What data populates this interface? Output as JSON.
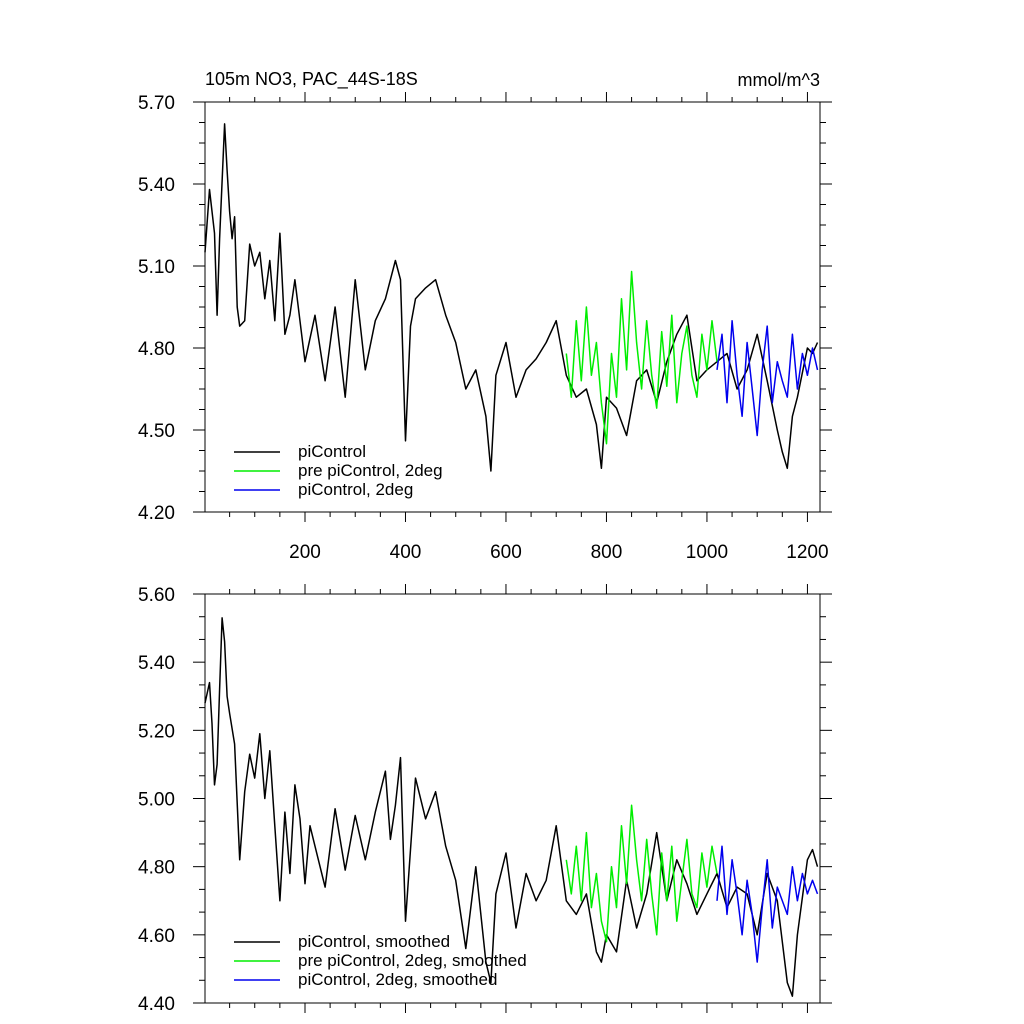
{
  "chart_data": [
    {
      "type": "line",
      "title": "105m NO3, PAC_44S-18S",
      "units": "mmol/m^3",
      "xlim": [
        1,
        1225
      ],
      "ylim": [
        4.2,
        5.7
      ],
      "x_ticks": [
        200,
        400,
        600,
        800,
        1000,
        1200
      ],
      "x_tick_labels": [
        "200",
        "400",
        "600",
        "800",
        "1000",
        "1200"
      ],
      "y_ticks": [
        4.2,
        4.5,
        4.8,
        5.1,
        5.4,
        5.7
      ],
      "y_tick_labels": [
        "4.20",
        "4.50",
        "4.80",
        "5.10",
        "5.40",
        "5.70"
      ],
      "legend_position": "bottom-left",
      "series": [
        {
          "name": "piControl",
          "color": "#000000",
          "x": [
            1,
            10,
            20,
            25,
            30,
            40,
            45,
            50,
            55,
            60,
            65,
            70,
            80,
            90,
            100,
            110,
            120,
            130,
            140,
            150,
            160,
            170,
            180,
            200,
            220,
            240,
            260,
            280,
            300,
            320,
            340,
            360,
            380,
            390,
            400,
            410,
            420,
            440,
            460,
            480,
            500,
            520,
            540,
            560,
            570,
            580,
            600,
            620,
            640,
            660,
            680,
            700,
            720,
            740,
            760,
            780,
            790,
            800,
            820,
            840,
            860,
            880,
            900,
            920,
            940,
            960,
            980,
            1000,
            1020,
            1040,
            1060,
            1080,
            1100,
            1120,
            1140,
            1150,
            1160,
            1170,
            1180,
            1200,
            1210,
            1220
          ],
          "y": [
            5.15,
            5.38,
            5.22,
            4.92,
            5.2,
            5.62,
            5.45,
            5.3,
            5.2,
            5.28,
            4.95,
            4.88,
            4.9,
            5.18,
            5.1,
            5.15,
            4.98,
            5.12,
            4.9,
            5.22,
            4.85,
            4.92,
            5.05,
            4.75,
            4.92,
            4.68,
            4.95,
            4.62,
            5.05,
            4.72,
            4.9,
            4.98,
            5.12,
            5.05,
            4.46,
            4.88,
            4.98,
            5.02,
            5.05,
            4.92,
            4.82,
            4.65,
            4.72,
            4.55,
            4.35,
            4.7,
            4.82,
            4.62,
            4.72,
            4.76,
            4.82,
            4.9,
            4.7,
            4.62,
            4.65,
            4.52,
            4.36,
            4.62,
            4.58,
            4.48,
            4.68,
            4.72,
            4.6,
            4.75,
            4.85,
            4.92,
            4.68,
            4.72,
            4.75,
            4.78,
            4.65,
            4.72,
            4.85,
            4.68,
            4.5,
            4.42,
            4.36,
            4.55,
            4.62,
            4.8,
            4.78,
            4.82
          ]
        },
        {
          "name": "pre piControl, 2deg",
          "color": "#00ee00",
          "x": [
            720,
            730,
            740,
            750,
            760,
            770,
            780,
            790,
            800,
            810,
            820,
            830,
            840,
            850,
            860,
            870,
            880,
            890,
            900,
            910,
            920,
            930,
            940,
            950,
            960,
            970,
            980,
            990,
            1000,
            1010,
            1020
          ],
          "y": [
            4.78,
            4.62,
            4.9,
            4.68,
            4.95,
            4.7,
            4.82,
            4.6,
            4.45,
            4.78,
            4.62,
            4.98,
            4.72,
            5.08,
            4.82,
            4.65,
            4.9,
            4.7,
            4.58,
            4.86,
            4.66,
            4.92,
            4.6,
            4.78,
            4.88,
            4.7,
            4.62,
            4.85,
            4.72,
            4.9,
            4.75
          ]
        },
        {
          "name": "piControl, 2deg",
          "color": "#0000ee",
          "x": [
            1020,
            1030,
            1040,
            1050,
            1060,
            1070,
            1080,
            1090,
            1100,
            1110,
            1120,
            1130,
            1140,
            1150,
            1160,
            1170,
            1180,
            1190,
            1200,
            1210,
            1220
          ],
          "y": [
            4.72,
            4.85,
            4.6,
            4.9,
            4.7,
            4.55,
            4.82,
            4.65,
            4.48,
            4.72,
            4.88,
            4.6,
            4.75,
            4.68,
            4.62,
            4.85,
            4.65,
            4.78,
            4.7,
            4.8,
            4.72
          ]
        }
      ]
    },
    {
      "type": "line",
      "xlim": [
        1,
        1225
      ],
      "ylim": [
        4.4,
        5.6
      ],
      "y_ticks": [
        4.4,
        4.6,
        4.8,
        5.0,
        5.2,
        5.4,
        5.6
      ],
      "y_tick_labels": [
        "4.40",
        "4.60",
        "4.80",
        "5.00",
        "5.20",
        "5.40",
        "5.60"
      ],
      "legend_position": "bottom-left",
      "series": [
        {
          "name": "piControl, smoothed",
          "color": "#000000",
          "x": [
            1,
            10,
            15,
            20,
            25,
            30,
            35,
            40,
            45,
            50,
            60,
            70,
            80,
            90,
            100,
            110,
            120,
            130,
            140,
            150,
            160,
            170,
            180,
            190,
            200,
            210,
            220,
            240,
            260,
            280,
            300,
            320,
            340,
            360,
            370,
            380,
            390,
            400,
            420,
            440,
            460,
            480,
            500,
            520,
            540,
            560,
            570,
            580,
            600,
            620,
            640,
            660,
            680,
            700,
            720,
            740,
            760,
            780,
            790,
            800,
            820,
            840,
            860,
            880,
            900,
            920,
            940,
            960,
            980,
            1000,
            1020,
            1040,
            1060,
            1080,
            1100,
            1120,
            1140,
            1150,
            1160,
            1170,
            1180,
            1200,
            1210,
            1220
          ],
          "y": [
            5.28,
            5.34,
            5.22,
            5.04,
            5.1,
            5.32,
            5.53,
            5.46,
            5.3,
            5.25,
            5.16,
            4.82,
            5.02,
            5.13,
            5.06,
            5.19,
            5.0,
            5.14,
            4.92,
            4.7,
            4.96,
            4.78,
            5.04,
            4.94,
            4.75,
            4.92,
            4.86,
            4.74,
            4.97,
            4.79,
            4.95,
            4.82,
            4.96,
            5.08,
            4.88,
            4.98,
            5.12,
            4.64,
            5.06,
            4.94,
            5.02,
            4.86,
            4.76,
            4.56,
            4.8,
            4.52,
            4.46,
            4.72,
            4.84,
            4.62,
            4.78,
            4.7,
            4.76,
            4.92,
            4.7,
            4.66,
            4.72,
            4.55,
            4.52,
            4.6,
            4.55,
            4.76,
            4.62,
            4.72,
            4.9,
            4.7,
            4.82,
            4.75,
            4.66,
            4.72,
            4.78,
            4.68,
            4.74,
            4.72,
            4.6,
            4.78,
            4.7,
            4.58,
            4.46,
            4.42,
            4.6,
            4.82,
            4.85,
            4.8
          ]
        },
        {
          "name": "pre piControl, 2deg, smoothed",
          "color": "#00ee00",
          "x": [
            720,
            730,
            740,
            750,
            760,
            770,
            780,
            790,
            800,
            810,
            820,
            830,
            840,
            850,
            860,
            870,
            880,
            890,
            900,
            910,
            920,
            930,
            940,
            950,
            960,
            970,
            980,
            990,
            1000,
            1010,
            1020
          ],
          "y": [
            4.82,
            4.72,
            4.86,
            4.7,
            4.9,
            4.68,
            4.78,
            4.64,
            4.58,
            4.8,
            4.68,
            4.92,
            4.75,
            4.98,
            4.82,
            4.7,
            4.88,
            4.72,
            4.6,
            4.84,
            4.7,
            4.86,
            4.64,
            4.76,
            4.88,
            4.72,
            4.68,
            4.84,
            4.74,
            4.86,
            4.78
          ]
        },
        {
          "name": "piControl, 2deg, smoothed",
          "color": "#0000ee",
          "x": [
            1020,
            1030,
            1040,
            1050,
            1060,
            1070,
            1080,
            1090,
            1100,
            1110,
            1120,
            1130,
            1140,
            1150,
            1160,
            1170,
            1180,
            1190,
            1200,
            1210,
            1220
          ],
          "y": [
            4.7,
            4.86,
            4.66,
            4.82,
            4.72,
            4.6,
            4.76,
            4.66,
            4.52,
            4.68,
            4.82,
            4.62,
            4.74,
            4.7,
            4.66,
            4.8,
            4.7,
            4.78,
            4.72,
            4.76,
            4.72
          ]
        }
      ]
    }
  ]
}
